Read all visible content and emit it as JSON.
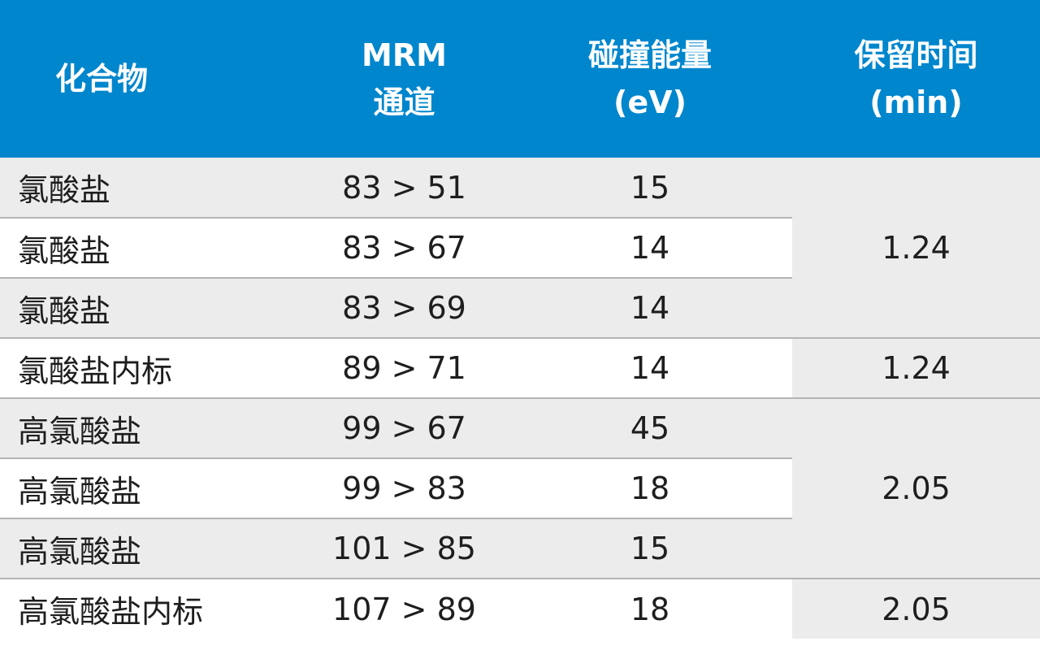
{
  "table": {
    "headers": [
      {
        "lines": [
          "化合物"
        ]
      },
      {
        "lines": [
          "MRM",
          "通道"
        ]
      },
      {
        "lines": [
          "碰撞能量",
          "(eV)"
        ]
      },
      {
        "lines": [
          "保留时间",
          "(min)"
        ]
      }
    ],
    "rows": [
      {
        "compound": "氯酸盐",
        "mrm": "83 > 51",
        "ce": "15"
      },
      {
        "compound": "氯酸盐",
        "mrm": "83 > 67",
        "ce": "14"
      },
      {
        "compound": "氯酸盐",
        "mrm": "83 > 69",
        "ce": "14"
      },
      {
        "compound": "氯酸盐内标",
        "mrm": "89 > 71",
        "ce": "14"
      },
      {
        "compound": "高氯酸盐",
        "mrm": "99 > 67",
        "ce": "45"
      },
      {
        "compound": "高氯酸盐",
        "mrm": "99 > 83",
        "ce": "18"
      },
      {
        "compound": "高氯酸盐",
        "mrm": "101 > 85",
        "ce": "15"
      },
      {
        "compound": "高氯酸盐内标",
        "mrm": "107 > 89",
        "ce": "18"
      }
    ],
    "retention_times": [
      "1.24",
      "1.24",
      "2.05",
      "2.05"
    ],
    "colors": {
      "header_bg": "#0086cd",
      "header_text": "#ffffff",
      "shade": "#ececec",
      "rule": "#b4b4b4"
    }
  }
}
